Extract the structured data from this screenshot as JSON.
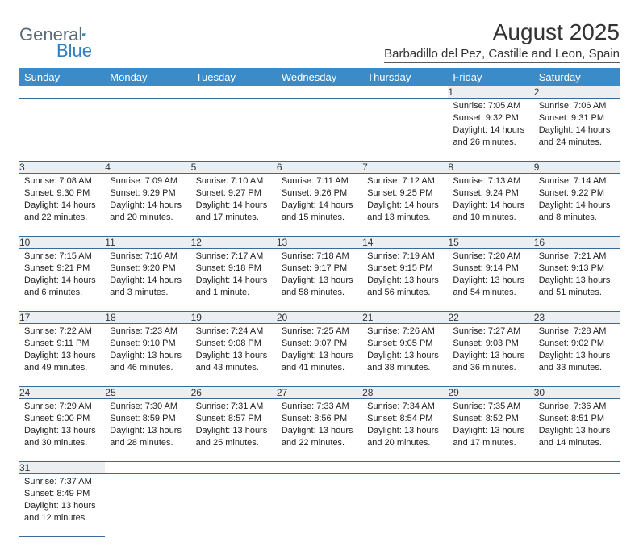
{
  "logo": {
    "text1": "General",
    "text2": "Blue"
  },
  "title": "August 2025",
  "location": "Barbadillo del Pez, Castille and Leon, Spain",
  "colors": {
    "header_bg": "#3b8bc9",
    "header_text": "#ffffff",
    "daynum_bg": "#eceff1",
    "cell_border": "#3b6a93",
    "logo_gray": "#5a6b7a",
    "logo_blue": "#2f7fc2"
  },
  "daysOfWeek": [
    "Sunday",
    "Monday",
    "Tuesday",
    "Wednesday",
    "Thursday",
    "Friday",
    "Saturday"
  ],
  "weeks": [
    [
      null,
      null,
      null,
      null,
      null,
      {
        "n": "1",
        "sr": "7:05 AM",
        "ss": "9:32 PM",
        "dl": "14 hours and 26 minutes."
      },
      {
        "n": "2",
        "sr": "7:06 AM",
        "ss": "9:31 PM",
        "dl": "14 hours and 24 minutes."
      }
    ],
    [
      {
        "n": "3",
        "sr": "7:08 AM",
        "ss": "9:30 PM",
        "dl": "14 hours and 22 minutes."
      },
      {
        "n": "4",
        "sr": "7:09 AM",
        "ss": "9:29 PM",
        "dl": "14 hours and 20 minutes."
      },
      {
        "n": "5",
        "sr": "7:10 AM",
        "ss": "9:27 PM",
        "dl": "14 hours and 17 minutes."
      },
      {
        "n": "6",
        "sr": "7:11 AM",
        "ss": "9:26 PM",
        "dl": "14 hours and 15 minutes."
      },
      {
        "n": "7",
        "sr": "7:12 AM",
        "ss": "9:25 PM",
        "dl": "14 hours and 13 minutes."
      },
      {
        "n": "8",
        "sr": "7:13 AM",
        "ss": "9:24 PM",
        "dl": "14 hours and 10 minutes."
      },
      {
        "n": "9",
        "sr": "7:14 AM",
        "ss": "9:22 PM",
        "dl": "14 hours and 8 minutes."
      }
    ],
    [
      {
        "n": "10",
        "sr": "7:15 AM",
        "ss": "9:21 PM",
        "dl": "14 hours and 6 minutes."
      },
      {
        "n": "11",
        "sr": "7:16 AM",
        "ss": "9:20 PM",
        "dl": "14 hours and 3 minutes."
      },
      {
        "n": "12",
        "sr": "7:17 AM",
        "ss": "9:18 PM",
        "dl": "14 hours and 1 minute."
      },
      {
        "n": "13",
        "sr": "7:18 AM",
        "ss": "9:17 PM",
        "dl": "13 hours and 58 minutes."
      },
      {
        "n": "14",
        "sr": "7:19 AM",
        "ss": "9:15 PM",
        "dl": "13 hours and 56 minutes."
      },
      {
        "n": "15",
        "sr": "7:20 AM",
        "ss": "9:14 PM",
        "dl": "13 hours and 54 minutes."
      },
      {
        "n": "16",
        "sr": "7:21 AM",
        "ss": "9:13 PM",
        "dl": "13 hours and 51 minutes."
      }
    ],
    [
      {
        "n": "17",
        "sr": "7:22 AM",
        "ss": "9:11 PM",
        "dl": "13 hours and 49 minutes."
      },
      {
        "n": "18",
        "sr": "7:23 AM",
        "ss": "9:10 PM",
        "dl": "13 hours and 46 minutes."
      },
      {
        "n": "19",
        "sr": "7:24 AM",
        "ss": "9:08 PM",
        "dl": "13 hours and 43 minutes."
      },
      {
        "n": "20",
        "sr": "7:25 AM",
        "ss": "9:07 PM",
        "dl": "13 hours and 41 minutes."
      },
      {
        "n": "21",
        "sr": "7:26 AM",
        "ss": "9:05 PM",
        "dl": "13 hours and 38 minutes."
      },
      {
        "n": "22",
        "sr": "7:27 AM",
        "ss": "9:03 PM",
        "dl": "13 hours and 36 minutes."
      },
      {
        "n": "23",
        "sr": "7:28 AM",
        "ss": "9:02 PM",
        "dl": "13 hours and 33 minutes."
      }
    ],
    [
      {
        "n": "24",
        "sr": "7:29 AM",
        "ss": "9:00 PM",
        "dl": "13 hours and 30 minutes."
      },
      {
        "n": "25",
        "sr": "7:30 AM",
        "ss": "8:59 PM",
        "dl": "13 hours and 28 minutes."
      },
      {
        "n": "26",
        "sr": "7:31 AM",
        "ss": "8:57 PM",
        "dl": "13 hours and 25 minutes."
      },
      {
        "n": "27",
        "sr": "7:33 AM",
        "ss": "8:56 PM",
        "dl": "13 hours and 22 minutes."
      },
      {
        "n": "28",
        "sr": "7:34 AM",
        "ss": "8:54 PM",
        "dl": "13 hours and 20 minutes."
      },
      {
        "n": "29",
        "sr": "7:35 AM",
        "ss": "8:52 PM",
        "dl": "13 hours and 17 minutes."
      },
      {
        "n": "30",
        "sr": "7:36 AM",
        "ss": "8:51 PM",
        "dl": "13 hours and 14 minutes."
      }
    ],
    [
      {
        "n": "31",
        "sr": "7:37 AM",
        "ss": "8:49 PM",
        "dl": "13 hours and 12 minutes."
      },
      null,
      null,
      null,
      null,
      null,
      null
    ]
  ],
  "labels": {
    "sunrise": "Sunrise:",
    "sunset": "Sunset:",
    "daylight": "Daylight:"
  }
}
